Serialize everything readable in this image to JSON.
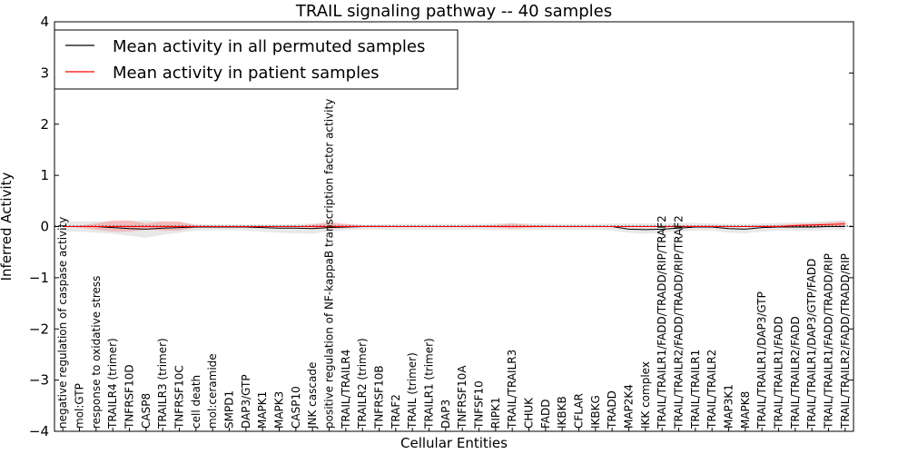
{
  "chart_data": {
    "type": "line",
    "title": "TRAIL signaling pathway -- 40 samples",
    "xlabel": "Cellular Entities",
    "ylabel": "Inferred Activity",
    "ylim": [
      -4,
      4
    ],
    "yticks": [
      -4,
      -3,
      -2,
      -1,
      0,
      1,
      2,
      3,
      4
    ],
    "ytick_labels": [
      "−4",
      "−3",
      "−2",
      "−1",
      "0",
      "1",
      "2",
      "3",
      "4"
    ],
    "grid": false,
    "legend_position": "top-left",
    "categories": [
      "negative regulation of caspase activity",
      "mol:GTP",
      "response to oxidative stress",
      "TRAILR4 (trimer)",
      "TNFRSF10D",
      "CASP8",
      "TRAILR3 (trimer)",
      "TNFRSF10C",
      "cell death",
      "mol:ceramide",
      "SMPD1",
      "DAP3/GTP",
      "MAPK1",
      "MAPK3",
      "CASP10",
      "JNK cascade",
      "positive regulation of NF-kappaB transcription factor activity",
      "TRAIL/TRAILR4",
      "TRAILR2 (trimer)",
      "TNFRSF10B",
      "TRAF2",
      "TRAIL (trimer)",
      "TRAILR1 (trimer)",
      "DAP3",
      "TNFRSF10A",
      "TNFSF10",
      "RIPK1",
      "TRAIL/TRAILR3",
      "CHUK",
      "FADD",
      "IKBKB",
      "CFLAR",
      "IKBKG",
      "TRADD",
      "MAP2K4",
      "IKK complex",
      "TRAIL/TRAILR1/FADD/TRADD/RIP/TRAF2",
      "TRAIL/TRAILR2/FADD/TRADD/RIP/TRAF2",
      "TRAIL/TRAILR1",
      "TRAIL/TRAILR2",
      "MAP3K1",
      "MAPK8",
      "TRAIL/TRAILR1/DAP3/GTP",
      "TRAIL/TRAILR1/FADD",
      "TRAIL/TRAILR2/FADD",
      "TRAIL/TRAILR1/DAP3/GTP/FADD",
      "TRAIL/TRAILR1/FADD/TRADD/RIP",
      "TRAIL/TRAILR2/FADD/TRADD/RIP"
    ],
    "series": [
      {
        "name": "Mean activity in all permuted samples",
        "color": "#000000",
        "values": [
          0.0,
          0.0,
          0.0,
          -0.02,
          -0.04,
          -0.05,
          -0.03,
          -0.02,
          -0.01,
          -0.01,
          -0.01,
          -0.01,
          -0.02,
          -0.03,
          -0.03,
          -0.04,
          -0.02,
          -0.01,
          0.0,
          0.0,
          0.0,
          0.0,
          0.0,
          0.0,
          0.0,
          0.0,
          0.0,
          0.0,
          0.0,
          0.0,
          0.0,
          0.0,
          0.0,
          0.0,
          -0.05,
          -0.06,
          -0.05,
          -0.03,
          -0.01,
          -0.01,
          -0.04,
          -0.05,
          -0.02,
          -0.01,
          -0.01,
          -0.01,
          0.0,
          0.0
        ],
        "band_upper": [
          0.1,
          0.1,
          0.1,
          0.1,
          0.11,
          0.12,
          0.1,
          0.08,
          0.05,
          0.04,
          0.04,
          0.04,
          0.04,
          0.04,
          0.05,
          0.06,
          0.07,
          0.05,
          0.04,
          0.04,
          0.05,
          0.05,
          0.05,
          0.05,
          0.05,
          0.05,
          0.06,
          0.07,
          0.06,
          0.06,
          0.05,
          0.05,
          0.05,
          0.06,
          0.06,
          0.06,
          0.06,
          0.07,
          0.07,
          0.06,
          0.05,
          0.05,
          0.06,
          0.07,
          0.08,
          0.09,
          0.11,
          0.12
        ],
        "band_lower": [
          -0.1,
          -0.1,
          -0.12,
          -0.14,
          -0.18,
          -0.22,
          -0.16,
          -0.12,
          -0.08,
          -0.07,
          -0.07,
          -0.08,
          -0.1,
          -0.12,
          -0.13,
          -0.14,
          -0.1,
          -0.07,
          -0.06,
          -0.06,
          -0.06,
          -0.06,
          -0.06,
          -0.06,
          -0.06,
          -0.06,
          -0.07,
          -0.07,
          -0.07,
          -0.06,
          -0.06,
          -0.06,
          -0.06,
          -0.08,
          -0.12,
          -0.14,
          -0.12,
          -0.1,
          -0.08,
          -0.08,
          -0.12,
          -0.13,
          -0.1,
          -0.08,
          -0.08,
          -0.08,
          -0.07,
          -0.07
        ]
      },
      {
        "name": "Mean activity in patient samples",
        "color": "#ff0000",
        "values": [
          0.0,
          0.0,
          0.0,
          0.0,
          0.0,
          0.0,
          0.0,
          0.0,
          0.0,
          0.0,
          0.0,
          0.0,
          0.0,
          0.0,
          0.0,
          0.0,
          0.0,
          0.0,
          0.0,
          0.0,
          0.0,
          0.0,
          0.0,
          0.0,
          0.0,
          0.0,
          0.0,
          0.0,
          0.0,
          0.0,
          0.0,
          0.0,
          0.0,
          0.0,
          0.0,
          0.0,
          0.0,
          0.0,
          0.0,
          0.0,
          0.0,
          0.0,
          0.0,
          0.0,
          0.02,
          0.03,
          0.04,
          0.05
        ],
        "band_upper": [
          0.0,
          0.02,
          0.06,
          0.12,
          0.12,
          0.06,
          0.1,
          0.1,
          0.02,
          0.01,
          0.0,
          0.0,
          0.0,
          0.0,
          0.0,
          0.04,
          0.08,
          0.05,
          0.02,
          0.02,
          0.01,
          0.01,
          0.01,
          0.01,
          0.01,
          0.02,
          0.03,
          0.06,
          0.03,
          0.02,
          0.01,
          0.01,
          0.01,
          0.01,
          0.01,
          0.01,
          0.01,
          0.02,
          0.02,
          0.02,
          0.01,
          0.01,
          0.02,
          0.03,
          0.05,
          0.06,
          0.08,
          0.1
        ],
        "band_lower": [
          0.0,
          -0.02,
          -0.06,
          -0.1,
          -0.1,
          -0.06,
          -0.08,
          -0.08,
          -0.02,
          -0.01,
          0.0,
          0.0,
          0.0,
          0.0,
          0.0,
          -0.02,
          -0.04,
          -0.03,
          -0.01,
          -0.01,
          -0.01,
          -0.01,
          -0.01,
          -0.01,
          -0.01,
          -0.01,
          -0.02,
          -0.04,
          -0.02,
          -0.01,
          -0.01,
          -0.01,
          -0.01,
          -0.01,
          -0.01,
          -0.01,
          -0.01,
          -0.01,
          -0.01,
          -0.01,
          -0.01,
          -0.01,
          -0.01,
          -0.01,
          0.0,
          0.0,
          0.0,
          0.0
        ]
      }
    ]
  }
}
